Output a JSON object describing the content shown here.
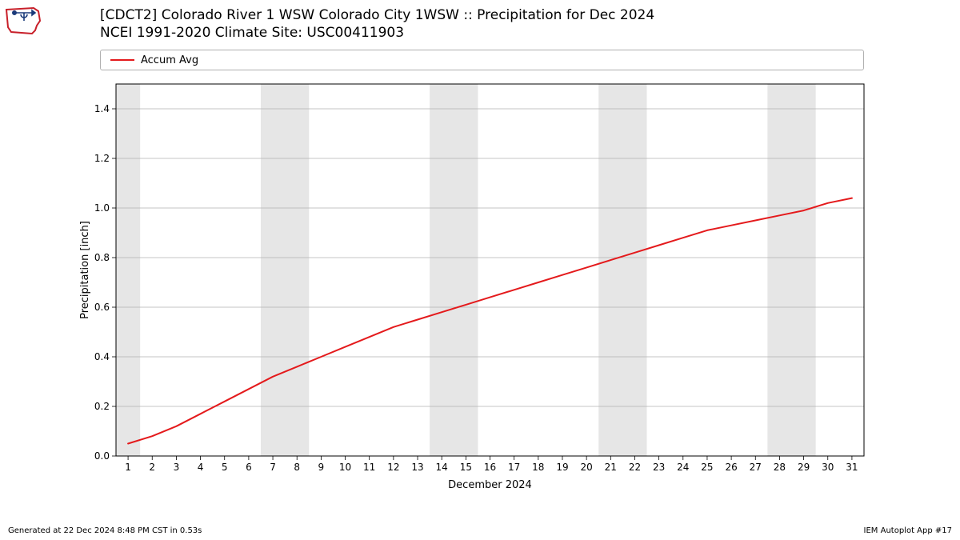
{
  "logo": {
    "outline_color": "#c8202a",
    "anemo_color": "#1a3a7a"
  },
  "title": {
    "line1": "[CDCT2] Colorado River 1 WSW Colorado City 1WSW :: Precipitation for Dec 2024",
    "line2": "NCEI 1991-2020 Climate Site: USC00411903",
    "fontsize": 17
  },
  "legend": {
    "label": "Accum Avg",
    "color": "#e41a1c",
    "line_width": 2
  },
  "chart": {
    "type": "line",
    "xlabel": "December 2024",
    "ylabel": "Precipitation [inch]",
    "xlim": [
      0.5,
      31.5
    ],
    "ylim": [
      0.0,
      1.5
    ],
    "xticks": [
      1,
      2,
      3,
      4,
      5,
      6,
      7,
      8,
      9,
      10,
      11,
      12,
      13,
      14,
      15,
      16,
      17,
      18,
      19,
      20,
      21,
      22,
      23,
      24,
      25,
      26,
      27,
      28,
      29,
      30,
      31
    ],
    "yticks": [
      0.0,
      0.2,
      0.4,
      0.6,
      0.8,
      1.0,
      1.2,
      1.4
    ],
    "grid_color": "#b0b0b0",
    "grid_width": 0.7,
    "background_color": "#ffffff",
    "weekend_band_color": "#e6e6e6",
    "weekend_days": [
      1,
      7,
      8,
      14,
      15,
      21,
      22,
      28,
      29
    ],
    "border_color": "#000000",
    "tick_fontsize": 12,
    "label_fontsize": 13,
    "series": {
      "name": "Accum Avg",
      "color": "#e41a1c",
      "line_width": 2,
      "x": [
        1,
        2,
        3,
        4,
        5,
        6,
        7,
        8,
        9,
        10,
        11,
        12,
        13,
        14,
        15,
        16,
        17,
        18,
        19,
        20,
        21,
        22,
        23,
        24,
        25,
        26,
        27,
        28,
        29,
        30,
        31
      ],
      "y": [
        0.05,
        0.08,
        0.12,
        0.17,
        0.22,
        0.27,
        0.32,
        0.36,
        0.4,
        0.44,
        0.48,
        0.52,
        0.55,
        0.58,
        0.61,
        0.64,
        0.67,
        0.7,
        0.73,
        0.76,
        0.79,
        0.82,
        0.85,
        0.88,
        0.91,
        0.93,
        0.95,
        0.97,
        0.99,
        1.02,
        1.04
      ]
    }
  },
  "footer": {
    "left": "Generated at 22 Dec 2024 8:48 PM CST in 0.53s",
    "right": "IEM Autoplot App #17",
    "fontsize": 10
  }
}
